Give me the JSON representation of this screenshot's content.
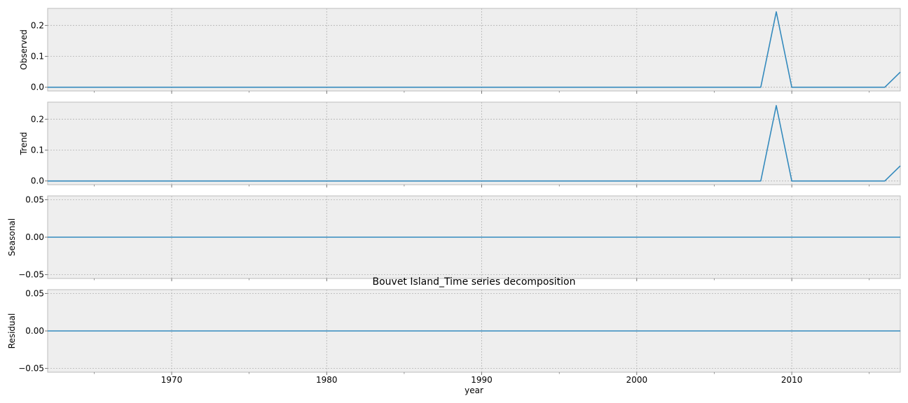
{
  "chart_data": {
    "type": "line",
    "title": "Bouvet Island_Time series decomposition",
    "xlabel": "year",
    "x": [
      1962,
      1963,
      1964,
      1965,
      1966,
      1967,
      1968,
      1969,
      1970,
      1971,
      1972,
      1973,
      1974,
      1975,
      1976,
      1977,
      1978,
      1979,
      1980,
      1981,
      1982,
      1983,
      1984,
      1985,
      1986,
      1987,
      1988,
      1989,
      1990,
      1991,
      1992,
      1993,
      1994,
      1995,
      1996,
      1997,
      1998,
      1999,
      2000,
      2001,
      2002,
      2003,
      2004,
      2005,
      2006,
      2007,
      2008,
      2009,
      2010,
      2011,
      2012,
      2013,
      2014,
      2015,
      2016,
      2017
    ],
    "xlim": [
      1962,
      2017
    ],
    "xticks": [
      1970,
      1980,
      1990,
      2000,
      2010
    ],
    "xtick_labels": [
      "1970",
      "1980",
      "1990",
      "2000",
      "2010"
    ],
    "grid": true,
    "line_color": "#348abd",
    "background_color": "#eeeeee",
    "panels": [
      {
        "ylabel": "Observed",
        "ylim": [
          -0.012,
          0.255
        ],
        "yticks": [
          0.0,
          0.1,
          0.2
        ],
        "ytick_labels": [
          "0.0",
          "0.1",
          "0.2"
        ],
        "values": [
          0,
          0,
          0,
          0,
          0,
          0,
          0,
          0,
          0,
          0,
          0,
          0,
          0,
          0,
          0,
          0,
          0,
          0,
          0,
          0,
          0,
          0,
          0,
          0,
          0,
          0,
          0,
          0,
          0,
          0,
          0,
          0,
          0,
          0,
          0,
          0,
          0,
          0,
          0,
          0,
          0,
          0,
          0,
          0,
          0,
          0,
          0,
          0.244,
          0,
          0,
          0,
          0,
          0,
          0,
          0,
          0.049
        ]
      },
      {
        "ylabel": "Trend",
        "ylim": [
          -0.012,
          0.255
        ],
        "yticks": [
          0.0,
          0.1,
          0.2
        ],
        "ytick_labels": [
          "0.0",
          "0.1",
          "0.2"
        ],
        "values": [
          0,
          0,
          0,
          0,
          0,
          0,
          0,
          0,
          0,
          0,
          0,
          0,
          0,
          0,
          0,
          0,
          0,
          0,
          0,
          0,
          0,
          0,
          0,
          0,
          0,
          0,
          0,
          0,
          0,
          0,
          0,
          0,
          0,
          0,
          0,
          0,
          0,
          0,
          0,
          0,
          0,
          0,
          0,
          0,
          0,
          0,
          0,
          0.244,
          0,
          0,
          0,
          0,
          0,
          0,
          0,
          0.049
        ]
      },
      {
        "ylabel": "Seasonal",
        "ylim": [
          -0.055,
          0.055
        ],
        "yticks": [
          -0.05,
          0.0,
          0.05
        ],
        "ytick_labels": [
          "−0.05",
          "0.00",
          "0.05"
        ],
        "values": [
          0,
          0,
          0,
          0,
          0,
          0,
          0,
          0,
          0,
          0,
          0,
          0,
          0,
          0,
          0,
          0,
          0,
          0,
          0,
          0,
          0,
          0,
          0,
          0,
          0,
          0,
          0,
          0,
          0,
          0,
          0,
          0,
          0,
          0,
          0,
          0,
          0,
          0,
          0,
          0,
          0,
          0,
          0,
          0,
          0,
          0,
          0,
          0,
          0,
          0,
          0,
          0,
          0,
          0,
          0,
          0
        ]
      },
      {
        "ylabel": "Residual",
        "ylim": [
          -0.055,
          0.055
        ],
        "yticks": [
          -0.05,
          0.0,
          0.05
        ],
        "ytick_labels": [
          "−0.05",
          "0.00",
          "0.05"
        ],
        "values": [
          0,
          0,
          0,
          0,
          0,
          0,
          0,
          0,
          0,
          0,
          0,
          0,
          0,
          0,
          0,
          0,
          0,
          0,
          0,
          0,
          0,
          0,
          0,
          0,
          0,
          0,
          0,
          0,
          0,
          0,
          0,
          0,
          0,
          0,
          0,
          0,
          0,
          0,
          0,
          0,
          0,
          0,
          0,
          0,
          0,
          0,
          0,
          0,
          0,
          0,
          0,
          0,
          0,
          0,
          0,
          0
        ]
      }
    ]
  }
}
